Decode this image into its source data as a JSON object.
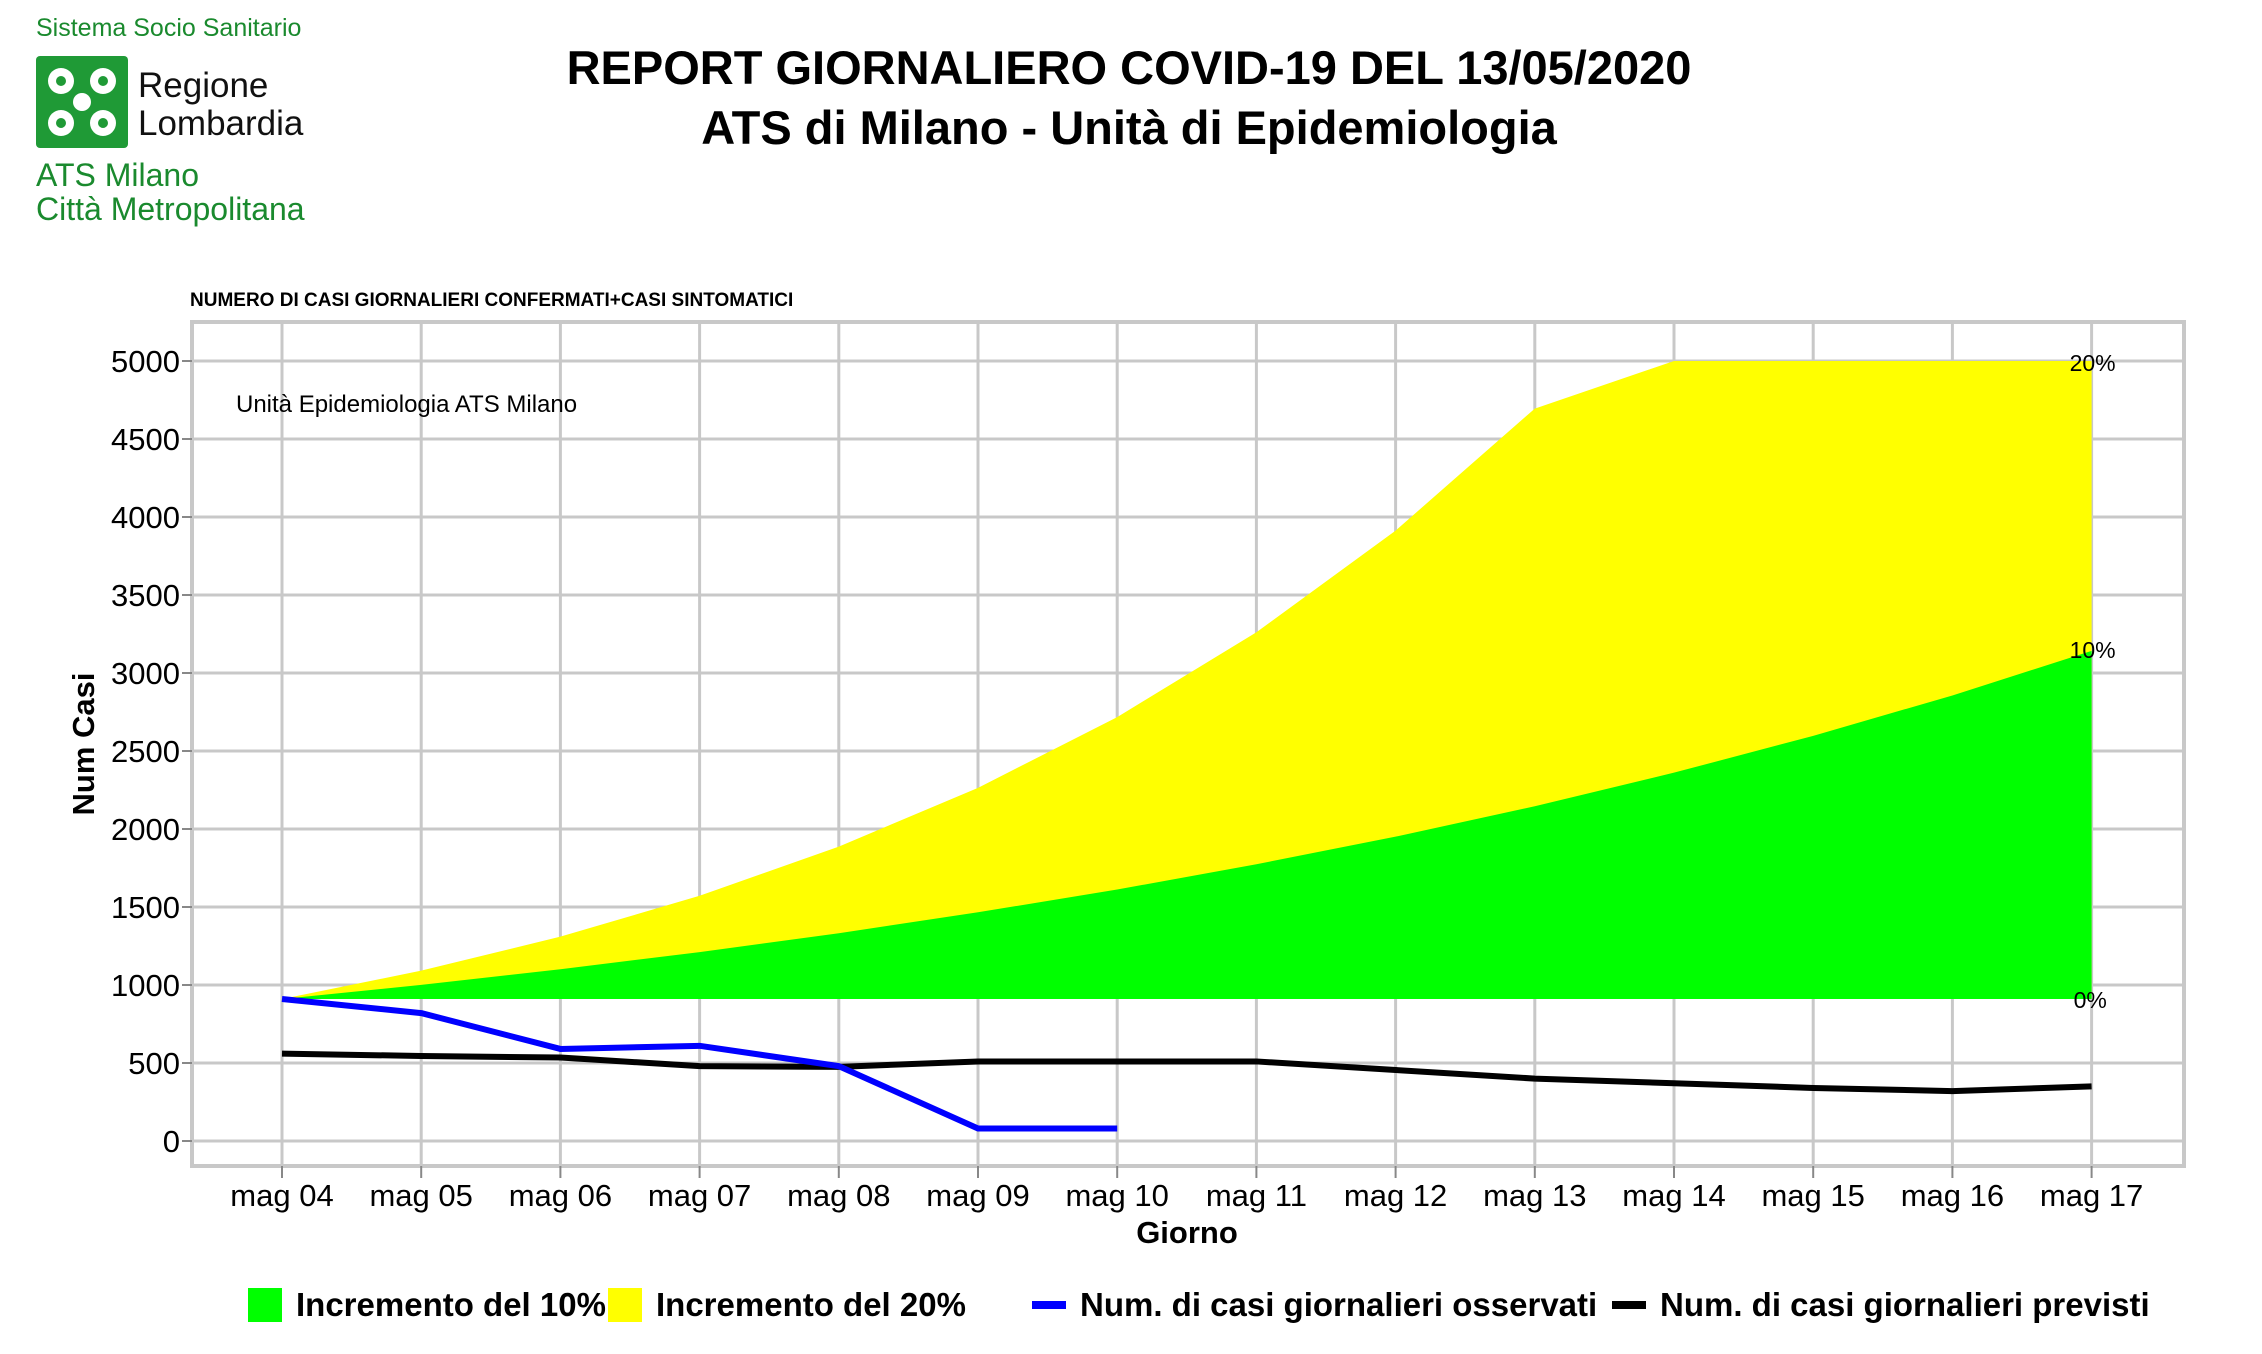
{
  "logo": {
    "top_text": "Sistema Socio Sanitario",
    "name_line1": "Regione",
    "name_line2": "Lombardia",
    "ats_line1": "ATS Milano",
    "ats_line2": "Città Metropolitana",
    "color": "#1f9a36"
  },
  "header": {
    "title_line1": "REPORT GIORNALIERO COVID-19 DEL 13/05/2020",
    "title_line2": "ATS di Milano - Unità di Epidemiologia"
  },
  "chart_data": {
    "type": "area",
    "title": "NUMERO DI CASI GIORNALIERI CONFERMATI+CASI SINTOMATICI",
    "annotation": "Unità Epidemiologia ATS Milano",
    "xlabel": "Giorno",
    "ylabel": "Num Casi",
    "ylim": [
      0,
      5000
    ],
    "yticks": [
      0,
      500,
      1000,
      1500,
      2000,
      2500,
      3000,
      3500,
      4000,
      4500,
      5000
    ],
    "grid": true,
    "categories": [
      "mag 04",
      "mag 05",
      "mag 06",
      "mag 07",
      "mag 08",
      "mag 09",
      "mag 10",
      "mag 11",
      "mag 12",
      "mag 13",
      "mag 14",
      "mag 15",
      "mag 16",
      "mag 17"
    ],
    "baseline": 910,
    "band_labels": {
      "pct20": "20%",
      "pct10": "10%",
      "pct0": "0%"
    },
    "series": [
      {
        "name": "Incremento del 10%",
        "kind": "band",
        "color": "#00ff00",
        "values": [
          910,
          1001,
          1101,
          1211,
          1332,
          1466,
          1612,
          1774,
          1951,
          2146,
          2361,
          2597,
          2856,
          3142
        ]
      },
      {
        "name": "Incremento del 20%",
        "kind": "band",
        "color": "#ffff00",
        "values": [
          910,
          1092,
          1310,
          1572,
          1887,
          2264,
          2717,
          3261,
          3913,
          4695,
          5000,
          5000,
          5000,
          5000
        ]
      },
      {
        "name": "Num. di casi giornalieri osservati",
        "kind": "line",
        "color": "#0000ff",
        "values": [
          910,
          820,
          590,
          610,
          480,
          80,
          80,
          null,
          null,
          null,
          null,
          null,
          null,
          null
        ]
      },
      {
        "name": "Num. di casi giornalieri previsti",
        "kind": "line",
        "color": "#000000",
        "values": [
          560,
          545,
          535,
          480,
          475,
          510,
          510,
          510,
          455,
          400,
          370,
          340,
          320,
          350
        ]
      }
    ]
  }
}
